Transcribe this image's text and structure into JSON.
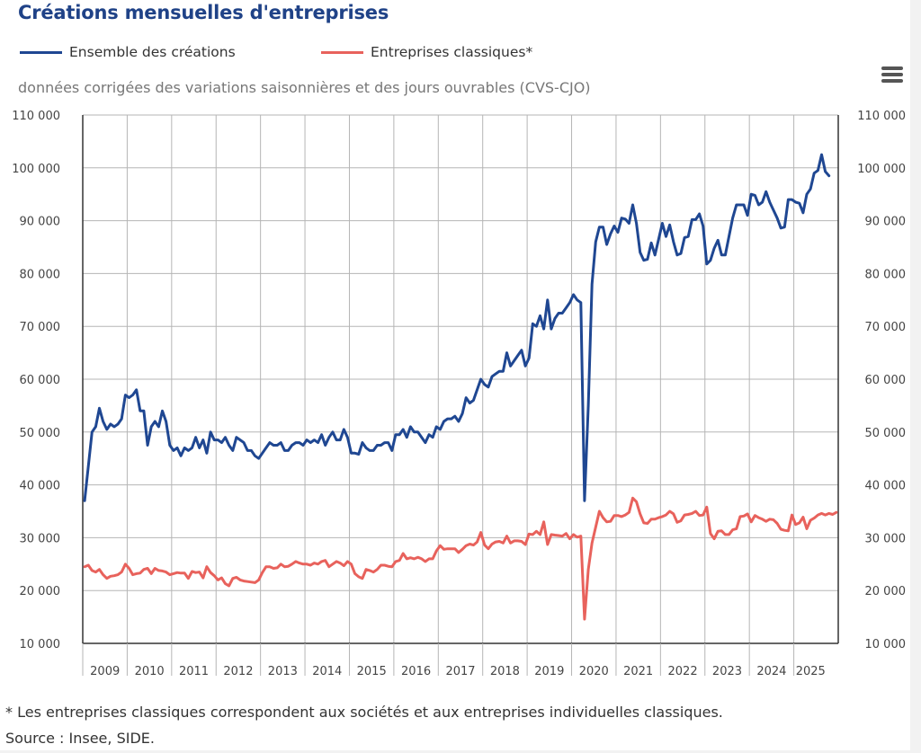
{
  "title": "Créations mensuelles d'entreprises",
  "subtitle": "données corrigées des variations saisonnières et des jours ouvrables (CVS-CJO)",
  "menu_icon": "hamburger-menu-icon",
  "footnote": "* Les entreprises classiques correspondent aux sociétés et aux entreprises individuelles classiques.",
  "source": "Source : Insee, SIDE.",
  "colors": {
    "title": "#1f4287",
    "series_total": "#1f4792",
    "series_classic": "#e8625c",
    "grid": "#b5b5b5",
    "axis": "#333333"
  },
  "chart_data": {
    "type": "line",
    "title": "Créations mensuelles d'entreprises",
    "subtitle": "données corrigées des variations saisonnières et des jours ouvrables (CVS-CJO)",
    "xlabel": "",
    "ylabel": "",
    "x_start": "2009-01",
    "x_frequency": "monthly",
    "x_ticks": [
      "2009",
      "2010",
      "2011",
      "2012",
      "2013",
      "2014",
      "2015",
      "2016",
      "2017",
      "2018",
      "2019",
      "2020",
      "2021",
      "2022",
      "2023",
      "2024",
      "2025"
    ],
    "y_ticks": [
      "10 000",
      "20 000",
      "30 000",
      "40 000",
      "50 000",
      "60 000",
      "70 000",
      "80 000",
      "90 000",
      "100 000",
      "110 000"
    ],
    "y_tick_values": [
      10000,
      20000,
      30000,
      40000,
      50000,
      60000,
      70000,
      80000,
      90000,
      100000,
      110000
    ],
    "ylim": [
      10000,
      110000
    ],
    "x_range_months": [
      0,
      204
    ],
    "grid": true,
    "legend_position": "top-left",
    "dual_y_axis_labels": true,
    "series": [
      {
        "name": "Ensemble des créations",
        "color": "#1f4792",
        "values": [
          37000,
          43500,
          50000,
          51000,
          54500,
          52000,
          50500,
          51500,
          51000,
          51500,
          52500,
          57000,
          56500,
          57000,
          58000,
          54000,
          54000,
          47500,
          51000,
          52000,
          51000,
          54000,
          52000,
          47500,
          46500,
          47000,
          45500,
          47000,
          46500,
          47000,
          49000,
          47000,
          48500,
          46000,
          50000,
          48500,
          48500,
          48000,
          49000,
          47500,
          46500,
          49000,
          48500,
          48000,
          46500,
          46500,
          45500,
          45000,
          46000,
          47000,
          48000,
          47500,
          47500,
          48000,
          46500,
          46500,
          47500,
          48000,
          48000,
          47500,
          48500,
          48000,
          48500,
          48000,
          49500,
          47500,
          49000,
          50000,
          48500,
          48500,
          50500,
          49000,
          46000,
          46000,
          45800,
          48000,
          47000,
          46500,
          46500,
          47500,
          47500,
          48000,
          48000,
          46500,
          49500,
          49500,
          50500,
          49000,
          51000,
          50000,
          50000,
          49000,
          48000,
          49500,
          49000,
          51000,
          50500,
          52000,
          52500,
          52500,
          53000,
          52000,
          53500,
          56500,
          55500,
          56000,
          58000,
          60000,
          59000,
          58500,
          60500,
          61000,
          61500,
          61500,
          65000,
          62500,
          63500,
          64500,
          65500,
          62500,
          64000,
          70500,
          70000,
          72000,
          69500,
          75000,
          69500,
          71500,
          72500,
          72500,
          73500,
          74500,
          76000,
          75000,
          74500,
          37000,
          55000,
          78000,
          86000,
          88800,
          88800,
          85500,
          87500,
          89000,
          87800,
          90500,
          90300,
          89500,
          93000,
          89500,
          84000,
          82500,
          82700,
          85800,
          83500,
          86500,
          89500,
          87000,
          89200,
          86000,
          83500,
          83800,
          86800,
          87000,
          90200,
          90200,
          91300,
          89000,
          81800,
          82500,
          84800,
          86300,
          83500,
          83500,
          87000,
          90500,
          93000,
          93000,
          93000,
          91000,
          95000,
          94800,
          93000,
          93500,
          95500,
          93500,
          92000,
          90500,
          88600,
          88800,
          94000,
          94000,
          93500,
          93300,
          91500,
          95000,
          96000,
          99000,
          99500,
          102500,
          99300,
          98500
        ]
      },
      {
        "name": "Entreprises classiques*",
        "color": "#e8625c",
        "values": [
          24500,
          24800,
          23800,
          23500,
          24000,
          23000,
          22300,
          22700,
          22800,
          23000,
          23500,
          25000,
          24200,
          23000,
          23200,
          23300,
          24000,
          24200,
          23200,
          24200,
          23800,
          23700,
          23500,
          23000,
          23200,
          23400,
          23300,
          23300,
          22300,
          23600,
          23400,
          23500,
          22400,
          24500,
          23400,
          22800,
          22000,
          22400,
          21300,
          20900,
          22300,
          22500,
          22000,
          21800,
          21700,
          21600,
          21500,
          22000,
          23400,
          24500,
          24500,
          24200,
          24300,
          25000,
          24500,
          24600,
          25000,
          25500,
          25200,
          25000,
          25000,
          24800,
          25200,
          25000,
          25500,
          25700,
          24500,
          25000,
          25500,
          25200,
          24700,
          25500,
          25000,
          23200,
          22600,
          22300,
          24000,
          23800,
          23500,
          24000,
          24800,
          24800,
          24600,
          24500,
          25500,
          25700,
          27000,
          26000,
          26200,
          26000,
          26300,
          26000,
          25500,
          26000,
          26000,
          27500,
          28500,
          27800,
          27900,
          27900,
          27900,
          27200,
          27800,
          28500,
          28800,
          28600,
          29200,
          31000,
          28600,
          27900,
          28800,
          29200,
          29300,
          29000,
          30300,
          29000,
          29400,
          29400,
          29300,
          28700,
          30700,
          30600,
          31200,
          30600,
          33000,
          28700,
          30600,
          30500,
          30400,
          30300,
          30800,
          29800,
          30600,
          30100,
          30300,
          14600,
          24000,
          29000,
          32000,
          35000,
          33800,
          33000,
          33100,
          34200,
          34200,
          34000,
          34300,
          34800,
          37500,
          36800,
          34500,
          32800,
          32700,
          33500,
          33500,
          33800,
          34000,
          34300,
          35000,
          34500,
          32900,
          33200,
          34300,
          34400,
          34600,
          35000,
          34200,
          34300,
          35800,
          30800,
          29800,
          31200,
          31300,
          30600,
          30600,
          31500,
          31700,
          34000,
          34100,
          34500,
          33000,
          34200,
          33800,
          33500,
          33100,
          33500,
          33400,
          32700,
          31600,
          31400,
          31300,
          34300,
          32500,
          32800,
          33900,
          31700,
          33300,
          33700,
          34300,
          34600,
          34300,
          34600,
          34400,
          34800
        ]
      }
    ]
  },
  "legend": [
    {
      "label": "Ensemble des créations",
      "color": "#1f4792"
    },
    {
      "label": "Entreprises classiques*",
      "color": "#e8625c"
    }
  ]
}
